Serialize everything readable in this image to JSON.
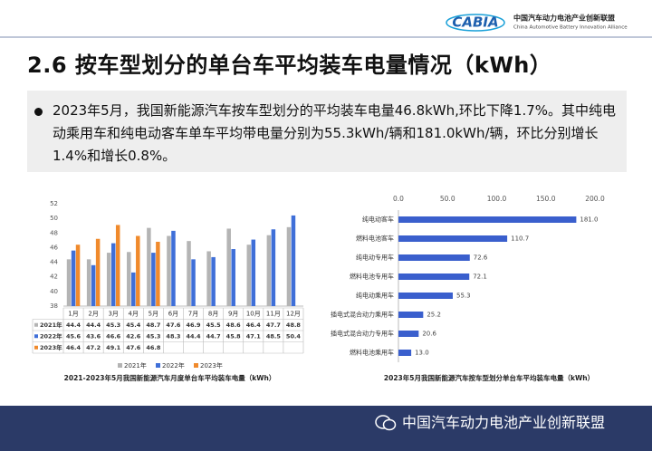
{
  "header": {
    "logo": "CABIA",
    "org_name": "中国汽车动力电池产业创新联盟",
    "org_name_en": "China Automotive Battery Innovation Alliance"
  },
  "title": "2.6 按车型划分的单台车平均装车电量情况（kWh）",
  "bullet": "2023年5月，我国新能源汽车按车型划分的平均装车电量46.8kWh,环比下降1.7%。其中纯电动乘用车和纯电动客车单车平均带电量分别为55.3kWh/辆和181.0kWh/辆，环比分别增长1.4%和增长0.8%。",
  "footer": "中国汽车动力电池产业创新联盟",
  "chart_data": [
    {
      "type": "bar",
      "title": "2021-2023年5月我国新能源汽车月度单台车平均装车电量（kWh）",
      "categories": [
        "1月",
        "2月",
        "3月",
        "4月",
        "5月",
        "6月",
        "7月",
        "8月",
        "9月",
        "10月",
        "11月",
        "12月"
      ],
      "series": [
        {
          "name": "2021年",
          "color": "#b4b4b4",
          "values": [
            44.4,
            44.4,
            45.3,
            45.4,
            48.7,
            47.6,
            46.9,
            45.5,
            48.6,
            46.4,
            47.7,
            48.8
          ]
        },
        {
          "name": "2022年",
          "color": "#3f6fd8",
          "values": [
            45.6,
            43.6,
            46.6,
            42.6,
            45.3,
            48.3,
            44.4,
            44.7,
            45.8,
            47.1,
            48.5,
            50.4
          ]
        },
        {
          "name": "2023年",
          "color": "#f08a2c",
          "values": [
            46.4,
            47.2,
            49.1,
            47.6,
            46.8,
            null,
            null,
            null,
            null,
            null,
            null,
            null
          ]
        }
      ],
      "ylim": [
        38,
        52
      ],
      "yticks": [
        38,
        40,
        42,
        44,
        46,
        48,
        50,
        52
      ],
      "grid": false
    },
    {
      "type": "barh",
      "title": "2023年5月我国新能源汽车按车型划分单台车平均装车电量（kWh）",
      "categories": [
        "纯电动客车",
        "燃料电池客车",
        "纯电动专用车",
        "燃料电池专用车",
        "纯电动乘用车",
        "插电式混合动力乘用车",
        "插电式混合动力专用车",
        "燃料电池乘用车"
      ],
      "values": [
        181.0,
        110.7,
        72.6,
        72.1,
        55.3,
        25.2,
        20.6,
        13.0
      ],
      "value_labels": [
        "181.0",
        "110.7",
        "72.6",
        "72.1",
        "55.3",
        "25.2",
        "20.6",
        "13.0"
      ],
      "color": "#3a5fcd",
      "xlim": [
        0,
        200
      ],
      "xticks": [
        {
          "value": 0,
          "label": "0.0"
        },
        {
          "value": 50,
          "label": "50.0"
        },
        {
          "value": 100,
          "label": "100.0"
        },
        {
          "value": 150,
          "label": "150.0"
        },
        {
          "value": 200,
          "label": "200.0"
        }
      ]
    }
  ]
}
